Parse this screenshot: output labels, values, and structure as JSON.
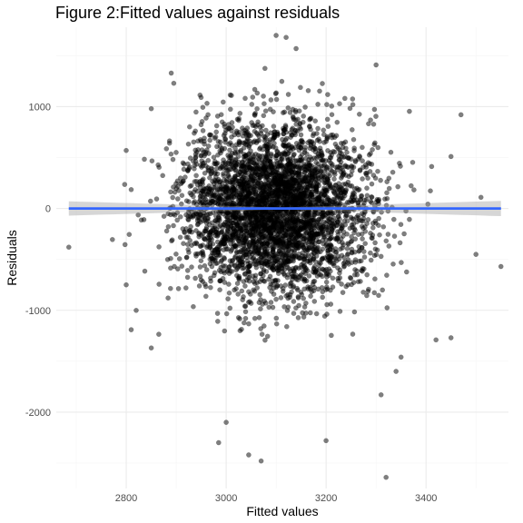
{
  "chart_data": {
    "type": "scatter",
    "title": "Figure 2:Fitted values against residuals",
    "xlabel": "Fitted values",
    "ylabel": "Residuals",
    "xlim": [
      2660,
      3565
    ],
    "ylim": [
      -2750,
      1780
    ],
    "x_ticks": [
      2800,
      3000,
      3200,
      3400
    ],
    "y_ticks": [
      -2000,
      -1000,
      0,
      1000
    ],
    "grid": true,
    "background": "white (theme_minimal)",
    "point_color": "#000000",
    "point_alpha": 0.5,
    "approx_n_points": 4000,
    "fitted_line": {
      "method": "linear",
      "color": "#3366ff",
      "x": [
        2685,
        3550
      ],
      "y": [
        0,
        0
      ],
      "confidence_band_color": "#999999",
      "band_halfwidth_at_x": [
        [
          2685,
          70
        ],
        [
          3110,
          10
        ],
        [
          3550,
          75
        ]
      ]
    },
    "cloud_summary": {
      "x_center": 3100,
      "x_sd": 90,
      "y_center": 0,
      "y_sd": 420
    },
    "highlighted_points": [
      {
        "x": 2685,
        "y": -380
      },
      {
        "x": 2800,
        "y": -750
      },
      {
        "x": 2810,
        "y": -1190
      },
      {
        "x": 2820,
        "y": -1000
      },
      {
        "x": 2850,
        "y": -1370
      },
      {
        "x": 2800,
        "y": 570
      },
      {
        "x": 2850,
        "y": 980
      },
      {
        "x": 2890,
        "y": 1330
      },
      {
        "x": 2985,
        "y": -2300
      },
      {
        "x": 3000,
        "y": -2100
      },
      {
        "x": 3045,
        "y": -2420
      },
      {
        "x": 3070,
        "y": -2480
      },
      {
        "x": 3200,
        "y": -2280
      },
      {
        "x": 3320,
        "y": -2640
      },
      {
        "x": 3310,
        "y": -1830
      },
      {
        "x": 3100,
        "y": 1700
      },
      {
        "x": 3120,
        "y": 1680
      },
      {
        "x": 3140,
        "y": 1570
      },
      {
        "x": 3300,
        "y": 1410
      },
      {
        "x": 3470,
        "y": 920
      },
      {
        "x": 3450,
        "y": 510
      },
      {
        "x": 3510,
        "y": 110
      },
      {
        "x": 3500,
        "y": -450
      },
      {
        "x": 3550,
        "y": -570
      },
      {
        "x": 3450,
        "y": -1270
      },
      {
        "x": 3420,
        "y": -1290
      },
      {
        "x": 3350,
        "y": -1460
      },
      {
        "x": 3340,
        "y": -1600
      }
    ]
  }
}
